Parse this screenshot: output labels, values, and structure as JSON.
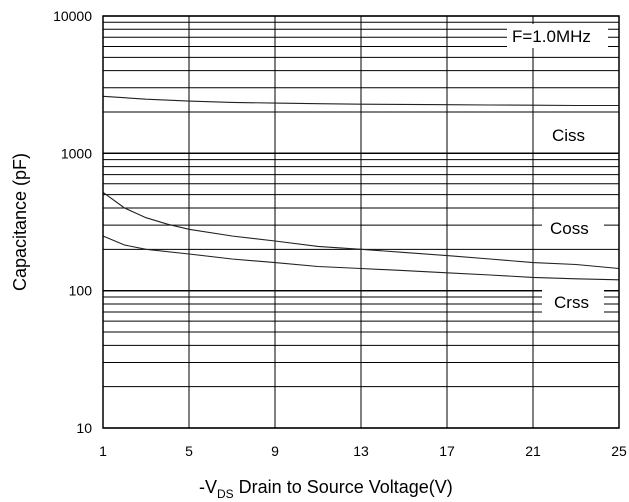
{
  "chart_data": {
    "type": "line",
    "title": "",
    "xlabel_prefix": "-V",
    "xlabel_sub": "DS",
    "xlabel_rest": " Drain to Source Voltage(V)",
    "ylabel": "Capacitance (pF)",
    "xlim": [
      1,
      25
    ],
    "ylim": [
      10,
      10000
    ],
    "yscale": "log",
    "grid": true,
    "x_ticks": [
      1,
      5,
      9,
      13,
      17,
      21,
      25
    ],
    "y_ticks": [
      10,
      100,
      1000,
      10000
    ],
    "annotation": "F=1.0MHz",
    "series": [
      {
        "name": "Ciss",
        "x": [
          1,
          3,
          5,
          7,
          9,
          11,
          13,
          15,
          17,
          19,
          21,
          23,
          25
        ],
        "y": [
          2600,
          2480,
          2400,
          2350,
          2320,
          2300,
          2280,
          2270,
          2260,
          2250,
          2240,
          2230,
          2230
        ]
      },
      {
        "name": "Coss",
        "x": [
          1,
          2,
          3,
          4,
          5,
          7,
          9,
          11,
          13,
          15,
          17,
          19,
          21,
          23,
          25
        ],
        "y": [
          520,
          400,
          340,
          305,
          280,
          250,
          230,
          210,
          200,
          190,
          180,
          170,
          160,
          155,
          145
        ]
      },
      {
        "name": "Crss",
        "x": [
          1,
          2,
          3,
          5,
          7,
          9,
          11,
          13,
          15,
          17,
          19,
          21,
          23,
          25
        ],
        "y": [
          250,
          215,
          200,
          185,
          170,
          160,
          150,
          145,
          140,
          135,
          130,
          125,
          122,
          120
        ]
      }
    ]
  }
}
